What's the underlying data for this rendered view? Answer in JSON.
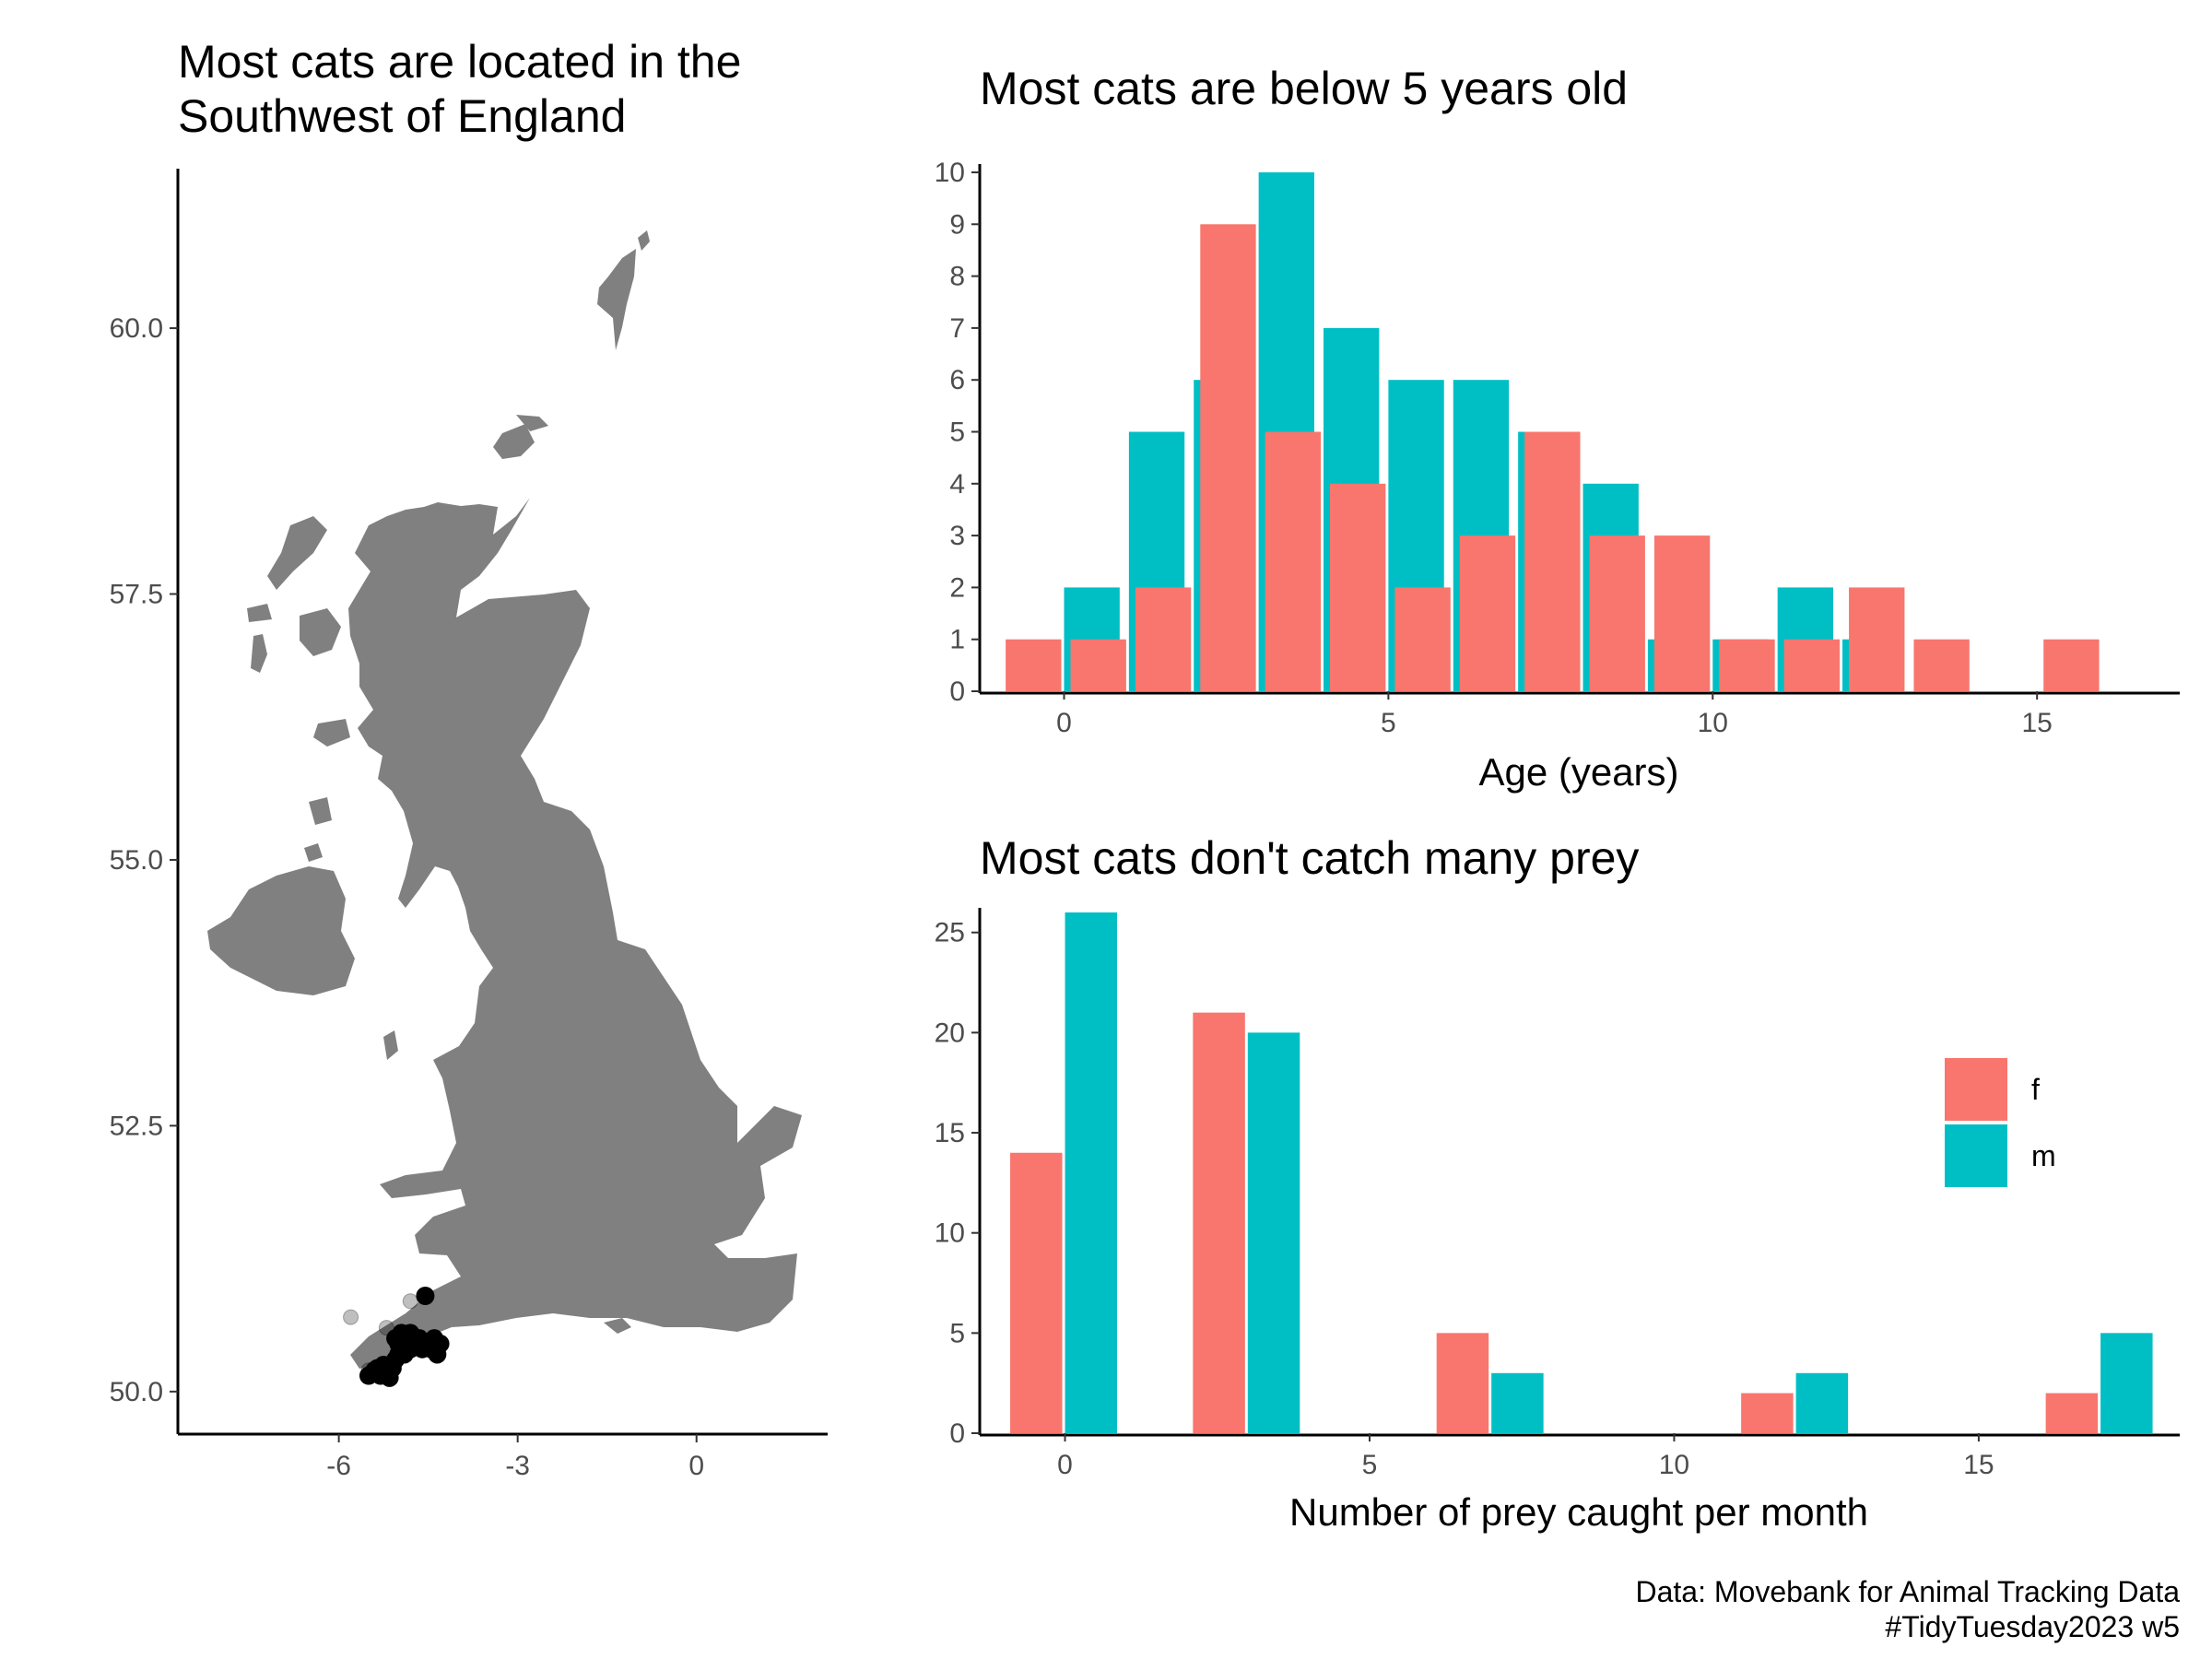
{
  "colors": {
    "f": "#F8766D",
    "m": "#00BFC4",
    "land": "#808080",
    "points": "#000000"
  },
  "chart_data": [
    {
      "type": "scatter",
      "name": "map",
      "title_lines": [
        "Most cats are located in the",
        "Southwest of England"
      ],
      "xlim": [
        -8.7,
        2.2
      ],
      "ylim": [
        49.6,
        61.5
      ],
      "x_ticks": [
        -6,
        -3,
        0
      ],
      "x_tick_labels": [
        "-6",
        "-3",
        "0"
      ],
      "y_ticks": [
        50.0,
        52.5,
        55.0,
        57.5,
        60.0
      ],
      "y_tick_labels": [
        "50.0",
        "52.5",
        "55.0",
        "57.5",
        "60.0"
      ],
      "faded_points": [
        [
          -5.8,
          50.7
        ],
        [
          -4.8,
          50.85
        ],
        [
          -5.2,
          50.6
        ],
        [
          -5.5,
          50.2
        ]
      ],
      "points": [
        [
          -5.5,
          50.15
        ],
        [
          -5.4,
          50.2
        ],
        [
          -5.3,
          50.15
        ],
        [
          -5.2,
          50.18
        ],
        [
          -5.15,
          50.13
        ],
        [
          -5.1,
          50.22
        ],
        [
          -5.05,
          50.3
        ],
        [
          -5.0,
          50.35
        ],
        [
          -4.95,
          50.4
        ],
        [
          -4.9,
          50.45
        ],
        [
          -4.85,
          50.5
        ],
        [
          -4.8,
          50.4
        ],
        [
          -4.75,
          50.45
        ],
        [
          -4.7,
          50.42
        ],
        [
          -4.65,
          50.48
        ],
        [
          -4.6,
          50.4
        ],
        [
          -4.5,
          50.45
        ],
        [
          -4.4,
          50.5
        ],
        [
          -4.35,
          50.35
        ],
        [
          -4.3,
          50.45
        ],
        [
          -4.55,
          50.9
        ],
        [
          -4.95,
          50.55
        ],
        [
          -5.05,
          50.5
        ],
        [
          -4.9,
          50.35
        ],
        [
          -5.25,
          50.25
        ],
        [
          -5.35,
          50.22
        ],
        [
          -4.65,
          50.5
        ],
        [
          -4.45,
          50.4
        ],
        [
          -5.0,
          50.45
        ],
        [
          -4.8,
          50.55
        ]
      ]
    },
    {
      "type": "bar",
      "name": "age",
      "title": "Most cats are below 5 years old",
      "xlabel": "Age (years)",
      "xlim": [
        -1.3,
        17.2
      ],
      "ylim": [
        0,
        10
      ],
      "x_ticks": [
        0,
        5,
        10,
        15
      ],
      "x_tick_labels": [
        "0",
        "5",
        "10",
        "15"
      ],
      "y_ticks": [
        0,
        1,
        2,
        3,
        4,
        5,
        6,
        7,
        8,
        9,
        10
      ],
      "y_tick_labels": [
        "0",
        "1",
        "2",
        "3",
        "4",
        "5",
        "6",
        "7",
        "8",
        "9",
        "10"
      ],
      "categories": [
        0,
        1,
        2,
        3,
        4,
        5,
        6,
        7,
        8,
        9,
        10,
        11,
        12,
        13,
        14,
        16
      ],
      "series": [
        {
          "name": "f",
          "values": [
            1,
            1,
            2,
            9,
            5,
            4,
            2,
            3,
            5,
            3,
            3,
            1,
            1,
            2,
            1,
            1
          ]
        },
        {
          "name": "m",
          "values": [
            2,
            5,
            6,
            10,
            7,
            6,
            6,
            5,
            4,
            1,
            1,
            2,
            1,
            0,
            0,
            0
          ]
        }
      ]
    },
    {
      "type": "bar",
      "name": "prey",
      "title": "Most cats don't catch many prey",
      "xlabel": "Number of prey caught per month",
      "xlim": [
        -1.4,
        18.3
      ],
      "ylim": [
        0,
        26
      ],
      "x_ticks": [
        0,
        5,
        10,
        15
      ],
      "x_tick_labels": [
        "0",
        "5",
        "10",
        "15"
      ],
      "y_ticks": [
        0,
        5,
        10,
        15,
        20,
        25
      ],
      "y_tick_labels": [
        "0",
        "5",
        "10",
        "15",
        "20",
        "25"
      ],
      "categories": [
        0,
        3,
        7,
        12,
        17
      ],
      "series": [
        {
          "name": "f",
          "values": [
            14,
            21,
            5,
            2,
            2
          ]
        },
        {
          "name": "m",
          "values": [
            26,
            20,
            3,
            3,
            5
          ]
        }
      ],
      "legend": {
        "position": "right",
        "entries": [
          "f",
          "m"
        ]
      }
    }
  ],
  "caption": [
    "Data: Movebank for Animal Tracking Data",
    "#TidyTuesday2023 w5"
  ]
}
